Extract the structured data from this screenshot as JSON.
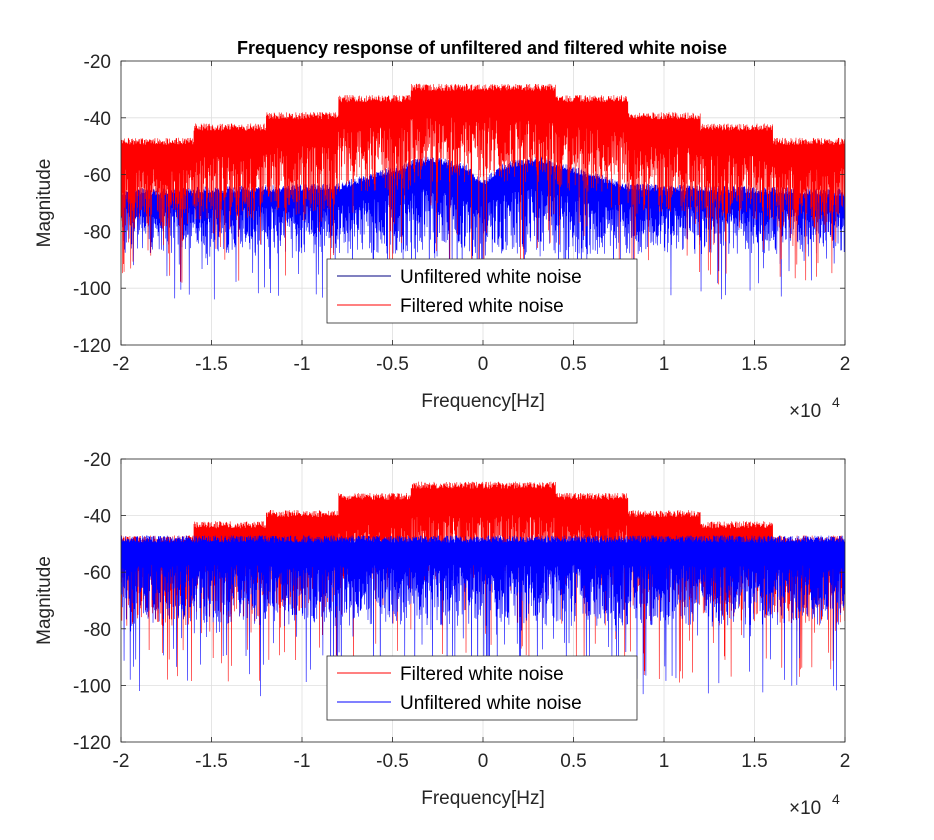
{
  "figure": {
    "title": "Frequency response of unfiltered and filtered white noise"
  },
  "chart_data": [
    {
      "type": "line",
      "title": "Frequency response of unfiltered and filtered white noise",
      "xlabel": "Frequency[Hz]",
      "ylabel": "Magnitude",
      "x_exponent_label": "×10",
      "x_exponent_power": "4",
      "xlim": [
        -20000,
        20000
      ],
      "ylim": [
        -120,
        -20
      ],
      "xticks": [
        -20000,
        -15000,
        -10000,
        -5000,
        0,
        5000,
        10000,
        15000,
        20000
      ],
      "xtick_labels": [
        "-2",
        "-1.5",
        "-1",
        "-0.5",
        "0",
        "0.5",
        "1",
        "1.5",
        "2"
      ],
      "yticks": [
        -20,
        -40,
        -60,
        -80,
        -100,
        -120
      ],
      "ytick_labels": [
        "-20",
        "-40",
        "-60",
        "-80",
        "-100",
        "-120"
      ],
      "grid": true,
      "legend_position": "lower-center",
      "legend": [
        "Unfiltered white noise",
        "Filtered white noise"
      ],
      "draw_order": [
        "blue",
        "red"
      ],
      "series": [
        {
          "name": "Unfiltered white noise",
          "color": "#0000ff",
          "band_x": [
            -20000,
            -8000,
            -5000,
            -3000,
            -1000,
            0,
            1000,
            3000,
            5000,
            8000,
            20000
          ],
          "band_top": [
            -65,
            -63,
            -57,
            -53,
            -56,
            -62,
            -56,
            -53,
            -57,
            -63,
            -65
          ],
          "band_bottom": [
            -82,
            -82,
            -82,
            -82,
            -83,
            -83,
            -83,
            -82,
            -82,
            -82,
            -82
          ],
          "spike_min": -104
        },
        {
          "name": "Filtered white noise",
          "color": "#ff0000",
          "segments": [
            {
              "x0": -20000,
              "x1": -16000,
              "top": -47,
              "bottom": -73
            },
            {
              "x0": -16000,
              "x1": -12000,
              "top": -42,
              "bottom": -70
            },
            {
              "x0": -12000,
              "x1": -8000,
              "top": -38,
              "bottom": -68
            },
            {
              "x0": -8000,
              "x1": -4000,
              "top": -32,
              "bottom": -60
            },
            {
              "x0": -4000,
              "x1": 4000,
              "top": -28,
              "bottom": -57
            },
            {
              "x0": 4000,
              "x1": 8000,
              "top": -32,
              "bottom": -60
            },
            {
              "x0": 8000,
              "x1": 12000,
              "top": -38,
              "bottom": -68
            },
            {
              "x0": 12000,
              "x1": 16000,
              "top": -42,
              "bottom": -70
            },
            {
              "x0": 16000,
              "x1": 20000,
              "top": -47,
              "bottom": -73
            }
          ],
          "spike_min": -99
        }
      ]
    },
    {
      "type": "line",
      "xlabel": "Frequency[Hz]",
      "ylabel": "Magnitude",
      "x_exponent_label": "×10",
      "x_exponent_power": "4",
      "xlim": [
        -20000,
        20000
      ],
      "ylim": [
        -120,
        -20
      ],
      "xticks": [
        -20000,
        -15000,
        -10000,
        -5000,
        0,
        5000,
        10000,
        15000,
        20000
      ],
      "xtick_labels": [
        "-2",
        "-1.5",
        "-1",
        "-0.5",
        "0",
        "0.5",
        "1",
        "1.5",
        "2"
      ],
      "yticks": [
        -20,
        -40,
        -60,
        -80,
        -100,
        -120
      ],
      "ytick_labels": [
        "-20",
        "-40",
        "-60",
        "-80",
        "-100",
        "-120"
      ],
      "grid": true,
      "legend_position": "lower-center",
      "legend": [
        "Filtered white noise",
        "Unfiltered white noise"
      ],
      "draw_order": [
        "red",
        "blue"
      ],
      "series": [
        {
          "name": "Filtered white noise",
          "color": "#ff0000",
          "segments": [
            {
              "x0": -20000,
              "x1": -16000,
              "top": -47,
              "bottom": -73
            },
            {
              "x0": -16000,
              "x1": -12000,
              "top": -42,
              "bottom": -70
            },
            {
              "x0": -12000,
              "x1": -8000,
              "top": -38,
              "bottom": -68
            },
            {
              "x0": -8000,
              "x1": -4000,
              "top": -32,
              "bottom": -60
            },
            {
              "x0": -4000,
              "x1": 4000,
              "top": -28,
              "bottom": -57
            },
            {
              "x0": 4000,
              "x1": 8000,
              "top": -32,
              "bottom": -60
            },
            {
              "x0": 8000,
              "x1": 12000,
              "top": -38,
              "bottom": -68
            },
            {
              "x0": 12000,
              "x1": 16000,
              "top": -42,
              "bottom": -70
            },
            {
              "x0": 16000,
              "x1": 20000,
              "top": -47,
              "bottom": -73
            }
          ],
          "spike_min": -99
        },
        {
          "name": "Unfiltered white noise",
          "color": "#0000ff",
          "band_x": [
            -20000,
            20000
          ],
          "band_top": [
            -47,
            -47
          ],
          "band_bottom": [
            -73,
            -73
          ],
          "spike_min": -104
        }
      ]
    }
  ]
}
